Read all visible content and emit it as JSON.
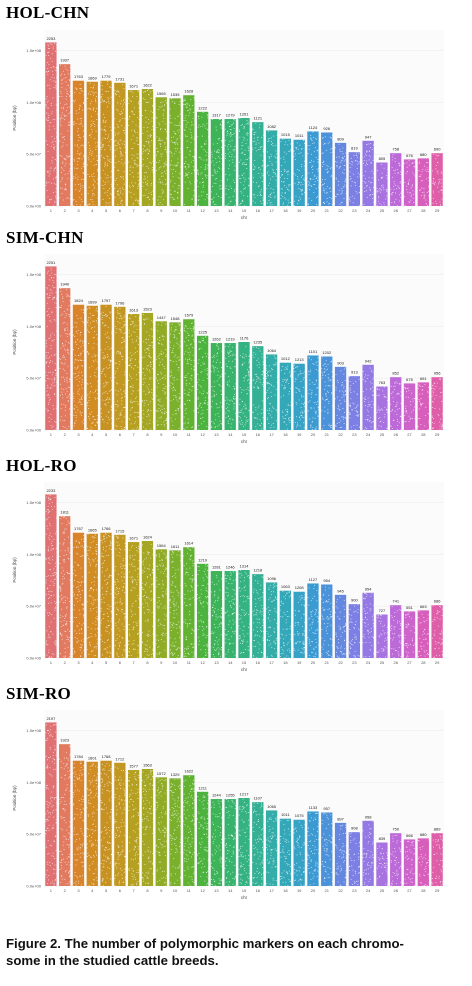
{
  "figure_caption": "Figure 2. The number of polymorphic markers on each chromo-\nsome in the studied cattle breeds.",
  "colors": [
    "#e07072",
    "#e27a60",
    "#d9842a",
    "#d18c22",
    "#c89222",
    "#c29822",
    "#b5a022",
    "#a4a624",
    "#90ab26",
    "#7ab02c",
    "#62b232",
    "#4cb43e",
    "#3eb458",
    "#36b46e",
    "#34b282",
    "#34b094",
    "#34aca8",
    "#34a8b8",
    "#36a2c6",
    "#3c9ad2",
    "#4a92da",
    "#6488e0",
    "#7c80e4",
    "#9478e4",
    "#a872e0",
    "#bc6ad8",
    "#cc64cc",
    "#d85ebc",
    "#de5ea8"
  ],
  "chart_data": [
    {
      "type": "bar",
      "title": "HOL-CHN",
      "xlabel": "chr",
      "ylabel": "Position (bp)",
      "categories": [
        "1",
        "2",
        "3",
        "4",
        "5",
        "6",
        "7",
        "8",
        "9",
        "10",
        "11",
        "12",
        "13",
        "14",
        "15",
        "16",
        "17",
        "18",
        "19",
        "20",
        "21",
        "22",
        "23",
        "24",
        "25",
        "26",
        "27",
        "28",
        "29"
      ],
      "values": [
        2253,
        1937,
        1763,
        1669,
        1779,
        1731,
        1671,
        1622,
        1565,
        1535,
        1628,
        1222,
        1317,
        1279,
        1261,
        1121,
        1082,
        1015,
        1011,
        1124,
        926,
        809,
        819,
        947,
        805,
        758,
        676,
        680,
        690
      ],
      "xtick_labels": [
        "1",
        "2",
        "3",
        "4",
        "5",
        "6",
        "7",
        "8",
        "9",
        "10",
        "11",
        "12",
        "13",
        "14",
        "15",
        "16",
        "17",
        "18",
        "19",
        "20",
        "21",
        "22",
        "23",
        "24",
        "25",
        "26",
        "27",
        "28",
        "29"
      ],
      "ytick_labels": [
        "1.5e+08",
        "1.0e+08",
        "5.0e+07",
        "0.0e+00"
      ],
      "ytick_values": [
        150000000,
        100000000,
        50000000,
        0
      ],
      "bar_heights_bp": [
        158000000,
        137000000,
        121000000,
        120000000,
        121000000,
        119000000,
        112000000,
        113000000,
        105000000,
        104000000,
        107000000,
        91000000,
        84000000,
        84000000,
        85000000,
        81000000,
        73000000,
        65000000,
        64000000,
        72000000,
        71000000,
        61000000,
        52000000,
        63000000,
        42000000,
        51000000,
        45000000,
        46000000,
        51000000
      ]
    },
    {
      "type": "bar",
      "title": "SIM-CHN",
      "xlabel": "chr",
      "ylabel": "Position (bp)",
      "categories": [
        "1",
        "2",
        "3",
        "4",
        "5",
        "6",
        "7",
        "8",
        "9",
        "10",
        "11",
        "12",
        "13",
        "14",
        "15",
        "16",
        "17",
        "18",
        "19",
        "20",
        "21",
        "22",
        "23",
        "24",
        "25",
        "26",
        "27",
        "28",
        "29"
      ],
      "values": [
        2251,
        1940,
        1824,
        1699,
        1797,
        1796,
        1613,
        1523,
        1447,
        1548,
        1579,
        1225,
        1262,
        1219,
        1176,
        1235,
        1064,
        1012,
        1213,
        1101,
        1202,
        903,
        913,
        942,
        763,
        852,
        675,
        691,
        956
      ],
      "xtick_labels": [
        "1",
        "2",
        "3",
        "4",
        "5",
        "6",
        "7",
        "8",
        "9",
        "10",
        "11",
        "12",
        "13",
        "14",
        "15",
        "16",
        "17",
        "18",
        "19",
        "20",
        "21",
        "22",
        "23",
        "24",
        "25",
        "26",
        "27",
        "28",
        "29"
      ],
      "ytick_labels": [
        "1.5e+08",
        "1.0e+08",
        "5.0e+07",
        "0.0e+00"
      ],
      "ytick_values": [
        150000000,
        100000000,
        50000000,
        0
      ],
      "bar_heights_bp": [
        158000000,
        137000000,
        121000000,
        120000000,
        121000000,
        119000000,
        112000000,
        113000000,
        105000000,
        104000000,
        107000000,
        91000000,
        84000000,
        84000000,
        85000000,
        81000000,
        73000000,
        65000000,
        64000000,
        72000000,
        71000000,
        61000000,
        52000000,
        63000000,
        42000000,
        51000000,
        45000000,
        46000000,
        51000000
      ]
    },
    {
      "type": "bar",
      "title": "HOL-RO",
      "xlabel": "chr",
      "ylabel": "Position (bp)",
      "categories": [
        "1",
        "2",
        "3",
        "4",
        "5",
        "6",
        "7",
        "8",
        "9",
        "10",
        "11",
        "12",
        "13",
        "14",
        "15",
        "16",
        "17",
        "18",
        "19",
        "20",
        "21",
        "22",
        "23",
        "24",
        "25",
        "26",
        "27",
        "28",
        "29"
      ],
      "values": [
        2233,
        1811,
        1767,
        1665,
        1766,
        1715,
        1671,
        1624,
        1564,
        1611,
        1614,
        1219,
        1281,
        1246,
        1314,
        1218,
        1096,
        1063,
        1208,
        1127,
        954,
        945,
        900,
        954,
        727,
        741,
        651,
        663,
        686
      ],
      "xtick_labels": [
        "1",
        "2",
        "3",
        "4",
        "5",
        "6",
        "7",
        "8",
        "9",
        "10",
        "11",
        "12",
        "13",
        "14",
        "15",
        "16",
        "17",
        "18",
        "19",
        "20",
        "21",
        "22",
        "23",
        "24",
        "25",
        "26",
        "27",
        "28",
        "29"
      ],
      "ytick_labels": [
        "1.5e+08",
        "1.0e+08",
        "5.0e+07",
        "0.0e+00"
      ],
      "ytick_values": [
        150000000,
        100000000,
        50000000,
        0
      ],
      "bar_heights_bp": [
        158000000,
        137000000,
        121000000,
        120000000,
        121000000,
        119000000,
        112000000,
        113000000,
        105000000,
        104000000,
        107000000,
        91000000,
        84000000,
        84000000,
        85000000,
        81000000,
        73000000,
        65000000,
        64000000,
        72000000,
        71000000,
        61000000,
        52000000,
        63000000,
        42000000,
        51000000,
        45000000,
        46000000,
        51000000
      ]
    },
    {
      "type": "bar",
      "title": "SIM-RO",
      "xlabel": "chr",
      "ylabel": "Position (bp)",
      "categories": [
        "1",
        "2",
        "3",
        "4",
        "5",
        "6",
        "7",
        "8",
        "9",
        "10",
        "11",
        "12",
        "13",
        "14",
        "15",
        "16",
        "17",
        "18",
        "19",
        "20",
        "21",
        "22",
        "23",
        "24",
        "25",
        "26",
        "27",
        "28",
        "29"
      ],
      "values": [
        2197,
        1923,
        1784,
        1601,
        1768,
        1712,
        1577,
        1563,
        1572,
        1329,
        1622,
        1211,
        1244,
        1255,
        1217,
        1107,
        1065,
        1011,
        1075,
        1133,
        957,
        897,
        908,
        958,
        839,
        750,
        666,
        680,
        889
      ],
      "xtick_labels": [
        "1",
        "2",
        "3",
        "4",
        "5",
        "6",
        "7",
        "8",
        "9",
        "10",
        "11",
        "12",
        "13",
        "14",
        "15",
        "16",
        "17",
        "18",
        "19",
        "20",
        "21",
        "22",
        "23",
        "24",
        "25",
        "26",
        "27",
        "28",
        "29"
      ],
      "ytick_labels": [
        "1.5e+08",
        "1.0e+08",
        "5.0e+07",
        "0.0e+00"
      ],
      "ytick_values": [
        150000000,
        100000000,
        50000000,
        0
      ],
      "bar_heights_bp": [
        158000000,
        137000000,
        121000000,
        120000000,
        121000000,
        119000000,
        112000000,
        113000000,
        105000000,
        104000000,
        107000000,
        91000000,
        84000000,
        84000000,
        85000000,
        81000000,
        73000000,
        65000000,
        64000000,
        72000000,
        71000000,
        61000000,
        52000000,
        63000000,
        42000000,
        51000000,
        45000000,
        46000000,
        51000000
      ]
    }
  ]
}
